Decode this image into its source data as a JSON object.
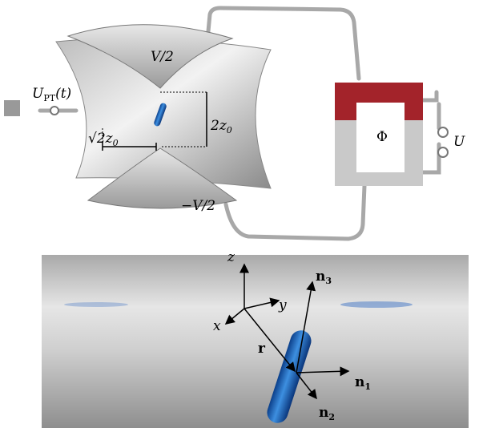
{
  "trap": {
    "top_voltage": "V/2",
    "bottom_voltage": "−V/2",
    "pt_voltage": {
      "base": "U",
      "sub": "PT",
      "suffix": "(t)"
    },
    "axial_size": {
      "base": "2z",
      "sub": "0"
    },
    "radial_size": {
      "root": "√",
      "base": "2z",
      "sub": "0"
    },
    "flux": "Φ",
    "source": "U"
  },
  "frame": {
    "z": "z",
    "y": "y",
    "x": "x",
    "r": "r",
    "n3": {
      "base": "n",
      "sub": "3"
    },
    "n1": {
      "base": "n",
      "sub": "1"
    },
    "n2": {
      "base": "n",
      "sub": "2"
    }
  }
}
